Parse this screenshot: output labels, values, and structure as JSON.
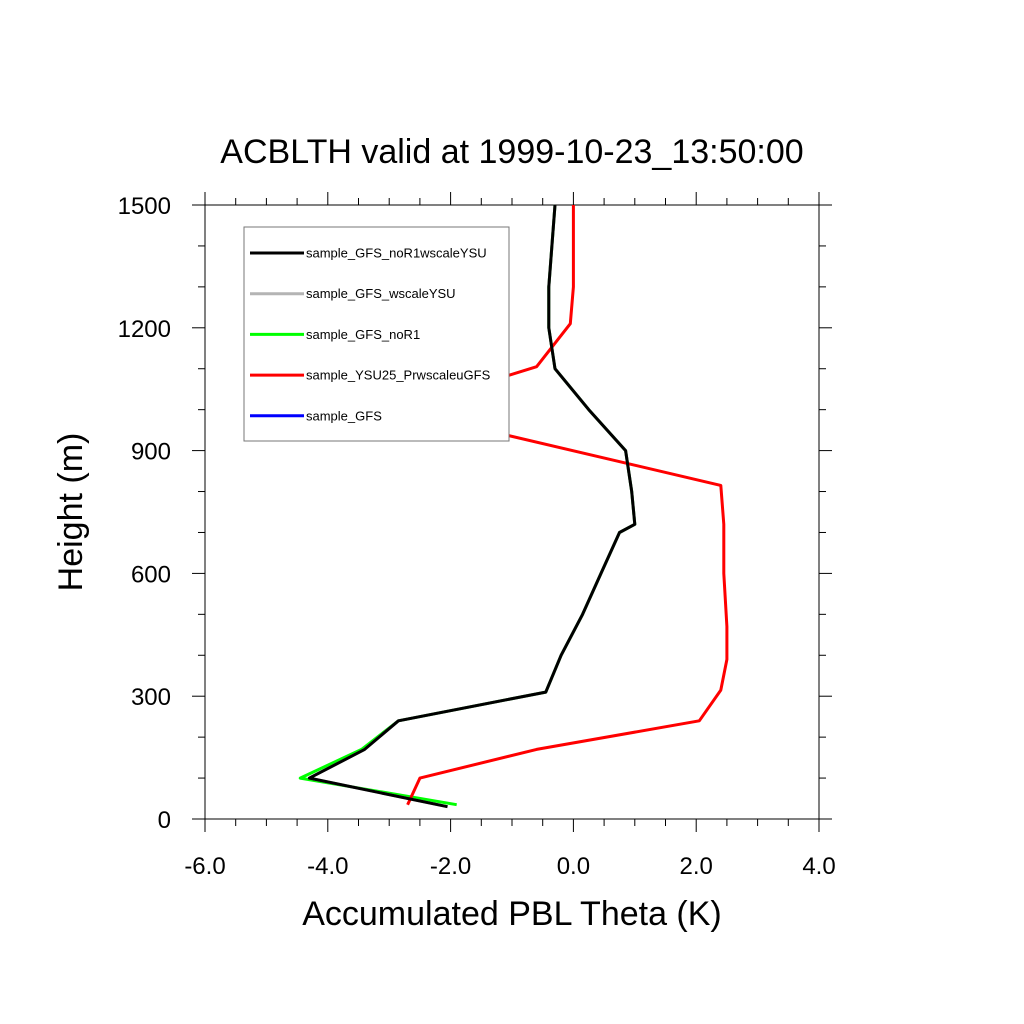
{
  "chart_data": {
    "type": "line",
    "title": "ACBLTH valid at 1999-10-23_13:50:00",
    "xlabel": "Accumulated PBL Theta (K)",
    "ylabel": "Height (m)",
    "xlim": [
      -6,
      4
    ],
    "ylim": [
      0,
      1500
    ],
    "xticks": [
      -6,
      -4,
      -2,
      0,
      2,
      4
    ],
    "xtick_labels": [
      "-6.0",
      "-4.0",
      "-2.0",
      "0.0",
      "2.0",
      "4.0"
    ],
    "yticks": [
      0,
      300,
      600,
      900,
      1200,
      1500
    ],
    "ytick_labels": [
      "0",
      "300",
      "600",
      "900",
      "1200",
      "1500"
    ],
    "grid": false,
    "legend_position": "top-left",
    "series": [
      {
        "name": "sample_GFS_noR1wscaleYSU",
        "color": "#000000",
        "points": [
          [
            -2.05,
            30
          ],
          [
            -4.3,
            100
          ],
          [
            -3.4,
            170
          ],
          [
            -2.85,
            240
          ],
          [
            -0.45,
            310
          ],
          [
            -0.2,
            400
          ],
          [
            0.15,
            500
          ],
          [
            0.45,
            600
          ],
          [
            0.75,
            700
          ],
          [
            1.0,
            720
          ],
          [
            0.95,
            800
          ],
          [
            0.85,
            900
          ],
          [
            0.25,
            1000
          ],
          [
            -0.3,
            1100
          ],
          [
            -0.4,
            1200
          ],
          [
            -0.4,
            1300
          ],
          [
            -0.35,
            1400
          ],
          [
            -0.3,
            1500
          ]
        ]
      },
      {
        "name": "sample_GFS_wscaleYSU",
        "color": "#b4b4b4",
        "points": [
          [
            -2.05,
            30
          ],
          [
            -4.3,
            100
          ],
          [
            -3.4,
            170
          ],
          [
            -2.85,
            240
          ],
          [
            -0.45,
            310
          ],
          [
            -0.2,
            400
          ],
          [
            0.15,
            500
          ],
          [
            0.45,
            600
          ],
          [
            0.75,
            700
          ],
          [
            1.0,
            720
          ],
          [
            0.95,
            800
          ],
          [
            0.85,
            900
          ],
          [
            0.25,
            1000
          ],
          [
            -0.3,
            1100
          ],
          [
            -0.4,
            1200
          ],
          [
            -0.4,
            1300
          ],
          [
            -0.35,
            1400
          ],
          [
            -0.3,
            1500
          ]
        ]
      },
      {
        "name": "sample_GFS_noR1",
        "color": "#00ff00",
        "points": [
          [
            -1.9,
            35
          ],
          [
            -4.45,
            100
          ],
          [
            -3.45,
            170
          ],
          [
            -2.85,
            240
          ],
          [
            -0.45,
            310
          ],
          [
            -0.2,
            400
          ],
          [
            0.15,
            500
          ],
          [
            0.45,
            600
          ],
          [
            0.75,
            700
          ],
          [
            1.0,
            720
          ],
          [
            0.95,
            800
          ],
          [
            0.85,
            900
          ],
          [
            0.25,
            1000
          ],
          [
            -0.3,
            1100
          ],
          [
            -0.4,
            1200
          ],
          [
            -0.4,
            1300
          ],
          [
            -0.35,
            1400
          ],
          [
            -0.3,
            1500
          ]
        ]
      },
      {
        "name": "sample_YSU25_PrwscaleuGFS",
        "color": "#ff0000",
        "points": [
          [
            -2.7,
            35
          ],
          [
            -2.5,
            100
          ],
          [
            -0.6,
            170
          ],
          [
            2.05,
            240
          ],
          [
            2.4,
            315
          ],
          [
            2.5,
            390
          ],
          [
            2.5,
            470
          ],
          [
            2.45,
            600
          ],
          [
            2.45,
            720
          ],
          [
            2.4,
            815
          ],
          [
            -2.85,
            1000
          ],
          [
            -0.6,
            1105
          ],
          [
            -0.05,
            1210
          ],
          [
            0.0,
            1300
          ],
          [
            0.0,
            1400
          ],
          [
            0.0,
            1500
          ]
        ]
      },
      {
        "name": "sample_GFS",
        "color": "#0000ff",
        "points": []
      }
    ]
  }
}
